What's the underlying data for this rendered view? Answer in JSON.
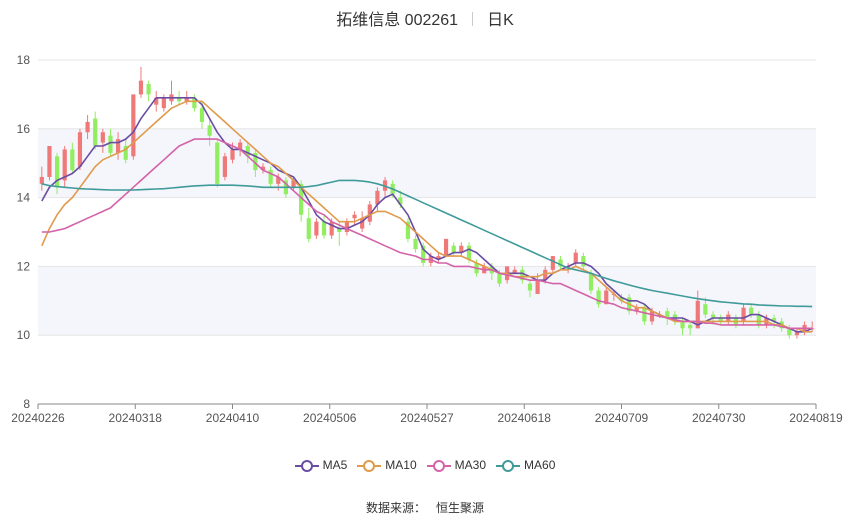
{
  "title": {
    "stock": "拓维信息 002261",
    "period": "日K"
  },
  "source": {
    "label": "数据来源：",
    "provider": "恒生聚源"
  },
  "colors": {
    "up": "#ef7979",
    "down": "#90ee60",
    "ma5": "#6a4ca3",
    "ma10": "#e09a4c",
    "ma30": "#d462a9",
    "ma60": "#3f9a9a"
  },
  "chart_data": {
    "type": "candlestick",
    "title": "拓维信息 002261 日K",
    "ylim": [
      8,
      18
    ],
    "yticks": [
      8,
      10,
      12,
      14,
      16,
      18
    ],
    "grid": "horizontal bands",
    "legend_position": "bottom",
    "x_tick_labels": [
      "20240226",
      "20240318",
      "20240410",
      "20240506",
      "20240527",
      "20240618",
      "20240709",
      "20240730",
      "20240819"
    ],
    "legend": [
      {
        "key": "ma5",
        "name": "MA5"
      },
      {
        "key": "ma10",
        "name": "MA10"
      },
      {
        "key": "ma30",
        "name": "MA30"
      },
      {
        "key": "ma60",
        "name": "MA60"
      }
    ],
    "candles": [
      [
        14.4,
        14.6,
        14.9,
        14.2
      ],
      [
        14.6,
        15.5,
        15.5,
        14.5
      ],
      [
        15.2,
        14.3,
        15.3,
        14.1
      ],
      [
        14.5,
        15.4,
        15.5,
        14.3
      ],
      [
        15.4,
        14.8,
        15.6,
        14.7
      ],
      [
        14.9,
        15.9,
        16.0,
        14.8
      ],
      [
        15.9,
        16.2,
        16.4,
        15.7
      ],
      [
        16.3,
        15.5,
        16.5,
        15.4
      ],
      [
        15.6,
        15.9,
        16.0,
        15.3
      ],
      [
        15.8,
        15.3,
        16.0,
        15.2
      ],
      [
        15.3,
        15.7,
        15.9,
        15.1
      ],
      [
        15.5,
        15.1,
        15.7,
        15.0
      ],
      [
        15.2,
        17.0,
        17.0,
        15.1
      ],
      [
        17.0,
        17.4,
        17.8,
        16.9
      ],
      [
        17.3,
        17.0,
        17.4,
        16.8
      ],
      [
        16.7,
        16.9,
        17.1,
        16.5
      ],
      [
        16.6,
        16.9,
        17.0,
        16.5
      ],
      [
        16.8,
        17.0,
        17.4,
        16.7
      ],
      [
        16.9,
        16.8,
        17.1,
        16.7
      ],
      [
        16.8,
        16.9,
        17.1,
        16.7
      ],
      [
        16.9,
        16.6,
        17.0,
        16.5
      ],
      [
        16.6,
        16.2,
        16.8,
        16.0
      ],
      [
        16.1,
        15.8,
        16.3,
        15.5
      ],
      [
        15.6,
        14.4,
        15.7,
        14.3
      ],
      [
        14.6,
        15.2,
        15.3,
        14.5
      ],
      [
        15.1,
        15.4,
        15.6,
        15.0
      ],
      [
        15.4,
        15.6,
        15.7,
        15.2
      ],
      [
        15.5,
        15.2,
        15.6,
        15.0
      ],
      [
        15.3,
        14.8,
        15.4,
        14.6
      ],
      [
        14.8,
        14.9,
        15.0,
        14.7
      ],
      [
        14.8,
        14.4,
        14.9,
        14.3
      ],
      [
        14.4,
        14.6,
        14.7,
        14.2
      ],
      [
        14.5,
        14.1,
        14.6,
        14.0
      ],
      [
        14.3,
        14.5,
        14.6,
        14.2
      ],
      [
        14.4,
        13.5,
        14.5,
        13.3
      ],
      [
        13.4,
        12.8,
        13.7,
        12.7
      ],
      [
        12.9,
        13.3,
        13.4,
        12.8
      ],
      [
        13.3,
        12.9,
        13.5,
        12.8
      ],
      [
        12.9,
        13.3,
        13.4,
        12.8
      ],
      [
        13.1,
        13.0,
        13.3,
        12.6
      ],
      [
        13.0,
        13.3,
        13.4,
        12.9
      ],
      [
        13.4,
        13.5,
        13.6,
        13.2
      ],
      [
        13.1,
        13.4,
        13.6,
        13.0
      ],
      [
        13.3,
        13.8,
        13.9,
        13.2
      ],
      [
        13.8,
        14.2,
        14.3,
        13.6
      ],
      [
        14.2,
        14.5,
        14.6,
        14.0
      ],
      [
        14.4,
        14.1,
        14.5,
        14.0
      ],
      [
        14.0,
        13.8,
        14.2,
        13.7
      ],
      [
        13.3,
        12.8,
        13.4,
        12.7
      ],
      [
        12.8,
        12.5,
        12.9,
        12.4
      ],
      [
        12.6,
        12.1,
        12.7,
        12.0
      ],
      [
        12.1,
        12.3,
        12.4,
        12.0
      ],
      [
        12.2,
        12.3,
        12.4,
        12.1
      ],
      [
        12.3,
        12.8,
        12.8,
        12.3
      ],
      [
        12.6,
        12.4,
        12.7,
        12.3
      ],
      [
        12.4,
        12.6,
        12.7,
        12.3
      ],
      [
        12.6,
        12.2,
        12.7,
        12.1
      ],
      [
        12.1,
        11.8,
        12.2,
        11.7
      ],
      [
        11.8,
        12.0,
        12.1,
        11.8
      ],
      [
        12.0,
        11.8,
        12.1,
        11.6
      ],
      [
        11.8,
        11.5,
        11.9,
        11.4
      ],
      [
        11.6,
        12.0,
        12.0,
        11.5
      ],
      [
        11.8,
        11.9,
        12.0,
        11.8
      ],
      [
        11.9,
        11.6,
        12.0,
        11.5
      ],
      [
        11.5,
        11.3,
        11.6,
        11.1
      ],
      [
        11.2,
        11.6,
        11.8,
        11.2
      ],
      [
        11.6,
        11.9,
        12.0,
        11.5
      ],
      [
        11.9,
        12.3,
        12.3,
        11.8
      ],
      [
        12.2,
        12.0,
        12.3,
        11.9
      ],
      [
        12.0,
        12.0,
        12.1,
        11.8
      ],
      [
        12.1,
        12.4,
        12.5,
        12.0
      ],
      [
        12.3,
        12.0,
        12.4,
        11.9
      ],
      [
        11.8,
        11.3,
        11.9,
        11.2
      ],
      [
        11.3,
        10.9,
        11.4,
        10.8
      ],
      [
        10.9,
        11.3,
        11.4,
        10.9
      ],
      [
        11.2,
        11.2,
        11.3,
        11.0
      ],
      [
        11.1,
        11.0,
        11.2,
        10.9
      ],
      [
        11.1,
        10.7,
        11.2,
        10.6
      ],
      [
        10.7,
        10.8,
        10.9,
        10.6
      ],
      [
        10.8,
        10.4,
        10.9,
        10.3
      ],
      [
        10.4,
        10.7,
        10.8,
        10.3
      ],
      [
        10.6,
        10.6,
        10.7,
        10.5
      ],
      [
        10.7,
        10.5,
        10.8,
        10.3
      ],
      [
        10.6,
        10.4,
        10.7,
        10.3
      ],
      [
        10.4,
        10.2,
        10.5,
        10.0
      ],
      [
        10.3,
        10.2,
        10.4,
        10.0
      ],
      [
        10.2,
        11.0,
        11.3,
        10.2
      ],
      [
        10.9,
        10.6,
        11.1,
        10.5
      ],
      [
        10.6,
        10.5,
        10.7,
        10.3
      ],
      [
        10.5,
        10.4,
        10.6,
        10.3
      ],
      [
        10.4,
        10.6,
        10.7,
        10.3
      ],
      [
        10.5,
        10.3,
        10.6,
        10.2
      ],
      [
        10.4,
        10.8,
        10.9,
        10.3
      ],
      [
        10.8,
        10.6,
        10.9,
        10.5
      ],
      [
        10.6,
        10.3,
        10.7,
        10.2
      ],
      [
        10.3,
        10.5,
        10.6,
        10.2
      ],
      [
        10.5,
        10.4,
        10.6,
        10.2
      ],
      [
        10.4,
        10.2,
        10.5,
        10.1
      ],
      [
        10.2,
        10.0,
        10.3,
        9.9
      ],
      [
        10.0,
        10.1,
        10.2,
        9.9
      ],
      [
        10.1,
        10.3,
        10.4,
        10.0
      ],
      [
        10.2,
        10.2,
        10.4,
        10.1
      ]
    ],
    "series": [
      {
        "key": "ma5",
        "name": "MA5",
        "values": [
          13.9,
          14.3,
          14.5,
          14.6,
          14.7,
          14.9,
          15.2,
          15.5,
          15.5,
          15.6,
          15.6,
          15.7,
          15.9,
          16.3,
          16.6,
          16.9,
          16.9,
          16.9,
          16.9,
          16.9,
          16.9,
          16.7,
          16.3,
          15.9,
          15.6,
          15.4,
          15.4,
          15.3,
          15.2,
          15.1,
          15.0,
          14.8,
          14.7,
          14.6,
          14.3,
          13.9,
          13.5,
          13.3,
          13.2,
          13.1,
          13.1,
          13.2,
          13.3,
          13.5,
          13.8,
          14.0,
          14.1,
          13.8,
          13.5,
          13.0,
          12.5,
          12.3,
          12.2,
          12.3,
          12.4,
          12.4,
          12.5,
          12.4,
          12.2,
          12.0,
          11.8,
          11.8,
          11.8,
          11.8,
          11.7,
          11.6,
          11.6,
          11.8,
          11.9,
          12.0,
          12.1,
          12.1,
          12.0,
          11.8,
          11.5,
          11.3,
          11.1,
          11.0,
          11.0,
          10.9,
          10.7,
          10.6,
          10.5,
          10.5,
          10.5,
          10.4,
          10.3,
          10.4,
          10.5,
          10.5,
          10.5,
          10.5,
          10.5,
          10.6,
          10.6,
          10.5,
          10.4,
          10.3,
          10.2,
          10.1,
          10.1,
          10.2
        ]
      },
      {
        "key": "ma10",
        "name": "MA10",
        "values": [
          12.6,
          13.1,
          13.5,
          13.8,
          14.0,
          14.3,
          14.6,
          14.9,
          15.1,
          15.2,
          15.3,
          15.4,
          15.6,
          15.8,
          16.0,
          16.2,
          16.4,
          16.6,
          16.7,
          16.8,
          16.8,
          16.8,
          16.6,
          16.4,
          16.2,
          16.0,
          15.8,
          15.6,
          15.4,
          15.2,
          15.0,
          14.9,
          14.7,
          14.5,
          14.3,
          14.1,
          13.9,
          13.7,
          13.5,
          13.3,
          13.3,
          13.3,
          13.4,
          13.5,
          13.6,
          13.6,
          13.5,
          13.4,
          13.2,
          13.0,
          12.8,
          12.6,
          12.4,
          12.3,
          12.3,
          12.3,
          12.2,
          12.1,
          12.0,
          11.9,
          11.8,
          11.8,
          11.7,
          11.7,
          11.7,
          11.7,
          11.8,
          11.8,
          11.9,
          11.9,
          12.0,
          11.9,
          11.8,
          11.6,
          11.4,
          11.2,
          11.0,
          10.9,
          10.8,
          10.8,
          10.7,
          10.6,
          10.5,
          10.4,
          10.4,
          10.4,
          10.4,
          10.4,
          10.4,
          10.4,
          10.4,
          10.4,
          10.4,
          10.4,
          10.4,
          10.4,
          10.3,
          10.3,
          10.2,
          10.2,
          10.1,
          10.1
        ]
      },
      {
        "key": "ma30",
        "name": "MA30",
        "values": [
          13.0,
          13.0,
          13.05,
          13.1,
          13.2,
          13.3,
          13.4,
          13.5,
          13.6,
          13.7,
          13.9,
          14.1,
          14.3,
          14.5,
          14.7,
          14.9,
          15.1,
          15.3,
          15.5,
          15.6,
          15.7,
          15.7,
          15.7,
          15.7,
          15.6,
          15.5,
          15.4,
          15.2,
          15.0,
          14.8,
          14.7,
          14.6,
          14.4,
          14.2,
          14.0,
          13.8,
          13.6,
          13.5,
          13.3,
          13.2,
          13.1,
          13.0,
          12.9,
          12.8,
          12.7,
          12.6,
          12.5,
          12.4,
          12.35,
          12.3,
          12.2,
          12.2,
          12.1,
          12.1,
          12.0,
          12.0,
          12.0,
          11.95,
          11.9,
          11.9,
          11.8,
          11.75,
          11.7,
          11.65,
          11.6,
          11.6,
          11.55,
          11.5,
          11.5,
          11.4,
          11.3,
          11.2,
          11.1,
          11.0,
          10.95,
          10.9,
          10.8,
          10.75,
          10.7,
          10.65,
          10.6,
          10.55,
          10.5,
          10.45,
          10.4,
          10.4,
          10.4,
          10.35,
          10.35,
          10.3,
          10.3,
          10.3,
          10.3,
          10.3,
          10.3,
          10.3,
          10.3,
          10.25,
          10.2,
          10.2,
          10.2,
          10.2
        ]
      },
      {
        "key": "ma60",
        "name": "MA60",
        "values": [
          14.4,
          14.35,
          14.32,
          14.3,
          14.28,
          14.26,
          14.25,
          14.24,
          14.23,
          14.22,
          14.22,
          14.22,
          14.22,
          14.23,
          14.24,
          14.25,
          14.26,
          14.28,
          14.3,
          14.32,
          14.34,
          14.35,
          14.36,
          14.36,
          14.36,
          14.36,
          14.35,
          14.34,
          14.32,
          14.3,
          14.3,
          14.3,
          14.3,
          14.3,
          14.3,
          14.32,
          14.35,
          14.4,
          14.45,
          14.5,
          14.5,
          14.5,
          14.48,
          14.45,
          14.4,
          14.33,
          14.25,
          14.15,
          14.05,
          13.95,
          13.85,
          13.75,
          13.65,
          13.55,
          13.45,
          13.35,
          13.25,
          13.15,
          13.05,
          12.95,
          12.85,
          12.75,
          12.65,
          12.55,
          12.45,
          12.35,
          12.25,
          12.15,
          12.05,
          11.95,
          11.9,
          11.85,
          11.8,
          11.72,
          11.65,
          11.58,
          11.52,
          11.46,
          11.4,
          11.35,
          11.3,
          11.26,
          11.22,
          11.18,
          11.14,
          11.1,
          11.06,
          11.03,
          11.0,
          10.97,
          10.95,
          10.93,
          10.91,
          10.9,
          10.88,
          10.87,
          10.86,
          10.85,
          10.85,
          10.84,
          10.84,
          10.83
        ]
      }
    ]
  }
}
